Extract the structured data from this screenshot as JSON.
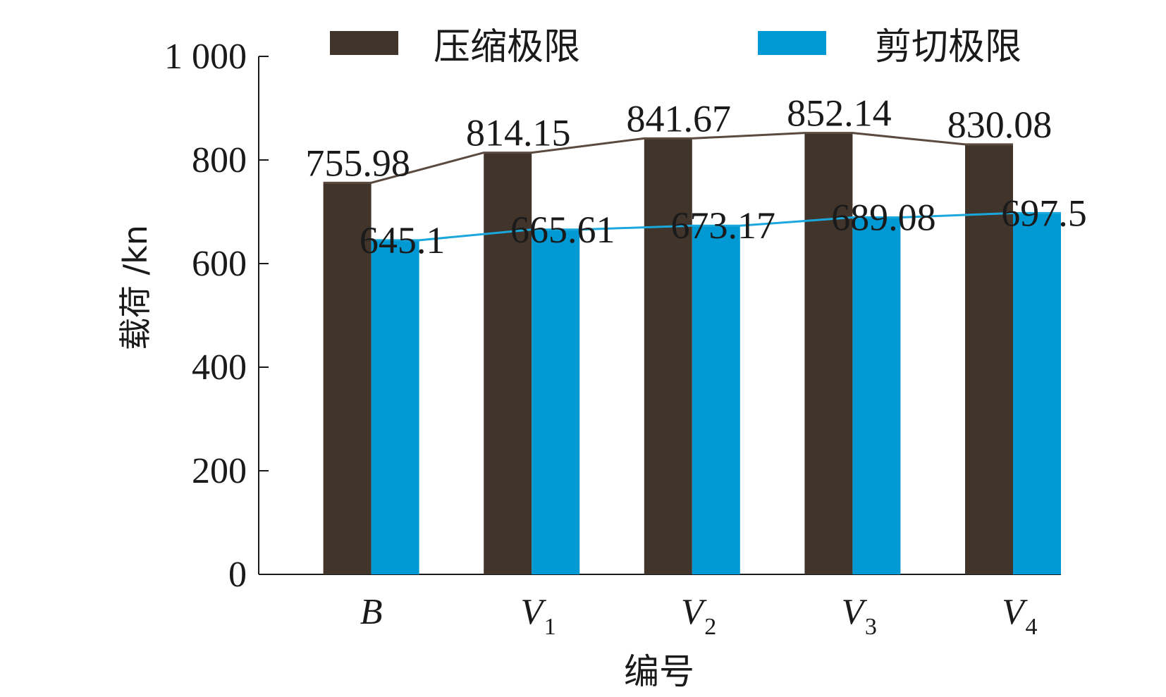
{
  "chart_data": {
    "type": "bar",
    "title": "",
    "xlabel": "编号",
    "ylabel": "载荷 /kn",
    "ylim": [
      0,
      1000
    ],
    "yticks": [
      "0",
      "200",
      "400",
      "600",
      "800",
      "1 000"
    ],
    "ytick_values": [
      0,
      200,
      400,
      600,
      800,
      1000
    ],
    "categories": [
      {
        "main": "B",
        "sub": ""
      },
      {
        "main": "V",
        "sub": "1"
      },
      {
        "main": "V",
        "sub": "2"
      },
      {
        "main": "V",
        "sub": "3"
      },
      {
        "main": "V",
        "sub": "4"
      }
    ],
    "series": [
      {
        "name": "压缩极限",
        "color": "#41342b",
        "values": [
          755.98,
          814.15,
          841.67,
          852.14,
          830.08
        ],
        "labels": [
          "755.98",
          "814.15",
          "841.67",
          "852.14",
          "830.08"
        ]
      },
      {
        "name": "剪切极限",
        "color": "#0099d4",
        "values": [
          645.1,
          665.61,
          673.17,
          689.08,
          697.5
        ],
        "labels": [
          "645.1",
          "665.61",
          "673.17",
          "689.08",
          "697.5"
        ]
      }
    ],
    "legend": "top",
    "grid": false,
    "trend_lines": true
  }
}
